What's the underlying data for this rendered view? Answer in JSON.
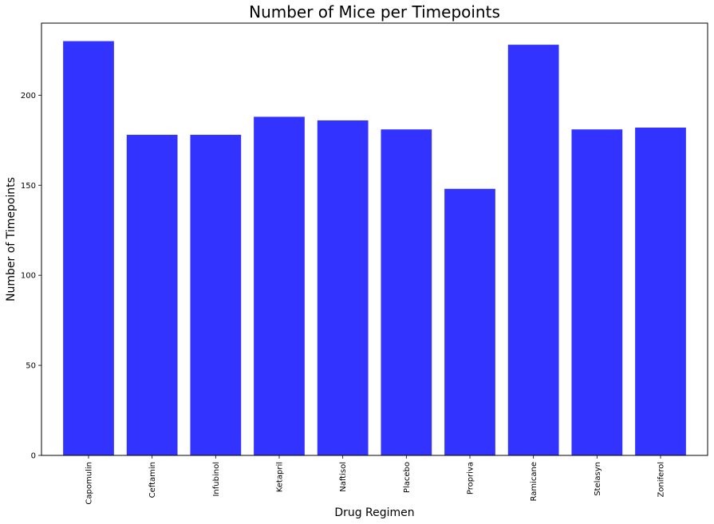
{
  "chart_data": {
    "type": "bar",
    "title": "Number of Mice per Timepoints",
    "xlabel": "Drug Regimen",
    "ylabel": "Number of Timepoints",
    "categories": [
      "Capomulin",
      "Ceftamin",
      "Infubinol",
      "Ketapril",
      "Naftisol",
      "Placebo",
      "Propriva",
      "Ramicane",
      "Stelasyn",
      "Zoniferol"
    ],
    "values": [
      230,
      178,
      178,
      188,
      186,
      181,
      148,
      228,
      181,
      182
    ],
    "yticks": [
      0,
      50,
      100,
      150,
      200
    ],
    "ylim": [
      0,
      240
    ],
    "bar_color": "#3333ff",
    "grid": false,
    "legend": "none"
  }
}
